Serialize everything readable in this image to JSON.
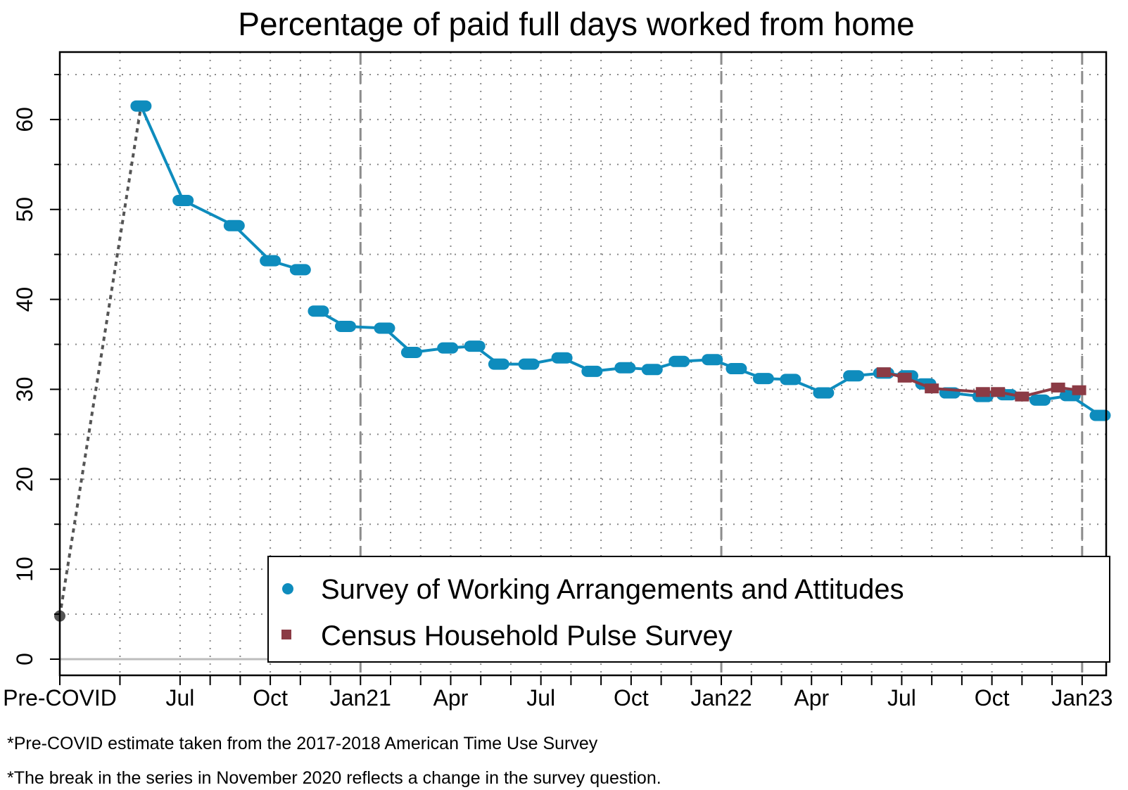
{
  "chart_data": {
    "type": "line",
    "title": "Percentage of paid full days worked from home",
    "xlabel": "",
    "ylabel": "",
    "xlim": [
      0,
      34.8
    ],
    "ylim": [
      -1.8,
      67.5
    ],
    "x_ticks": [
      {
        "x": 0,
        "label": "Pre-COVID"
      },
      {
        "x": 2,
        "label": ""
      },
      {
        "x": 4,
        "label": "Jul"
      },
      {
        "x": 5,
        "label": ""
      },
      {
        "x": 6,
        "label": ""
      },
      {
        "x": 7,
        "label": "Oct"
      },
      {
        "x": 8,
        "label": ""
      },
      {
        "x": 9,
        "label": ""
      },
      {
        "x": 10,
        "label": "Jan21"
      },
      {
        "x": 11,
        "label": ""
      },
      {
        "x": 12,
        "label": ""
      },
      {
        "x": 13,
        "label": "Apr"
      },
      {
        "x": 14,
        "label": ""
      },
      {
        "x": 15,
        "label": ""
      },
      {
        "x": 16,
        "label": "Jul"
      },
      {
        "x": 17,
        "label": ""
      },
      {
        "x": 18,
        "label": ""
      },
      {
        "x": 19,
        "label": "Oct"
      },
      {
        "x": 20,
        "label": ""
      },
      {
        "x": 21,
        "label": ""
      },
      {
        "x": 22,
        "label": "Jan22"
      },
      {
        "x": 23,
        "label": ""
      },
      {
        "x": 24,
        "label": ""
      },
      {
        "x": 25,
        "label": "Apr"
      },
      {
        "x": 26,
        "label": ""
      },
      {
        "x": 27,
        "label": ""
      },
      {
        "x": 28,
        "label": "Jul"
      },
      {
        "x": 29,
        "label": ""
      },
      {
        "x": 30,
        "label": ""
      },
      {
        "x": 31,
        "label": "Oct"
      },
      {
        "x": 32,
        "label": ""
      },
      {
        "x": 33,
        "label": ""
      },
      {
        "x": 34,
        "label": "Jan23"
      }
    ],
    "y_ticks": [
      0,
      10,
      20,
      30,
      40,
      50,
      60
    ],
    "minor_gridlines_y": [
      5,
      15,
      25,
      35,
      45,
      55,
      65
    ],
    "grid": true,
    "year_break_x": [
      10,
      22,
      34
    ],
    "connector": {
      "from": [
        0,
        4.8
      ],
      "to": [
        2.7,
        61.5
      ],
      "style": "dotted"
    },
    "pre_covid_point": {
      "x": 0,
      "y": 4.8
    },
    "legend_position": "bottom-right",
    "series": [
      {
        "name": "Survey of Working Arrangements and Attitudes",
        "color": "#0e8cbd",
        "marker": "circle",
        "segments": [
          [
            [
              2.7,
              61.5
            ],
            [
              4.1,
              51.0
            ],
            [
              5.8,
              48.2
            ],
            [
              7.0,
              44.3
            ],
            [
              8.0,
              43.3
            ]
          ],
          [
            [
              8.6,
              38.7
            ],
            [
              9.5,
              37.0
            ],
            [
              10.8,
              36.8
            ],
            [
              11.7,
              34.1
            ],
            [
              12.9,
              34.6
            ],
            [
              13.8,
              34.8
            ],
            [
              14.6,
              32.8
            ],
            [
              15.6,
              32.8
            ],
            [
              16.7,
              33.5
            ],
            [
              17.7,
              32.0
            ],
            [
              18.8,
              32.4
            ],
            [
              19.7,
              32.2
            ],
            [
              20.6,
              33.1
            ],
            [
              21.7,
              33.3
            ],
            [
              22.5,
              32.3
            ],
            [
              23.4,
              31.2
            ],
            [
              24.3,
              31.1
            ],
            [
              25.4,
              29.6
            ],
            [
              26.4,
              31.5
            ],
            [
              27.4,
              31.8
            ],
            [
              28.2,
              31.5
            ],
            [
              28.8,
              30.6
            ],
            [
              29.6,
              29.6
            ],
            [
              30.7,
              29.2
            ],
            [
              31.5,
              29.4
            ],
            [
              32.6,
              28.8
            ],
            [
              33.6,
              29.3
            ],
            [
              34.6,
              27.1
            ]
          ]
        ]
      },
      {
        "name": "Census Household Pulse Survey",
        "color": "#8b3b45",
        "marker": "square",
        "segments": [
          [
            [
              27.4,
              31.9
            ],
            [
              28.1,
              31.3
            ],
            [
              29.0,
              30.1
            ],
            [
              30.7,
              29.7
            ],
            [
              31.2,
              29.7
            ],
            [
              32.0,
              29.2
            ],
            [
              33.2,
              30.2
            ],
            [
              33.9,
              29.9
            ]
          ]
        ]
      }
    ]
  },
  "footnotes": [
    "*Pre-COVID estimate taken from the 2017-2018 American Time Use Survey",
    "*The break in the series in November 2020 reflects a change in the survey question."
  ]
}
